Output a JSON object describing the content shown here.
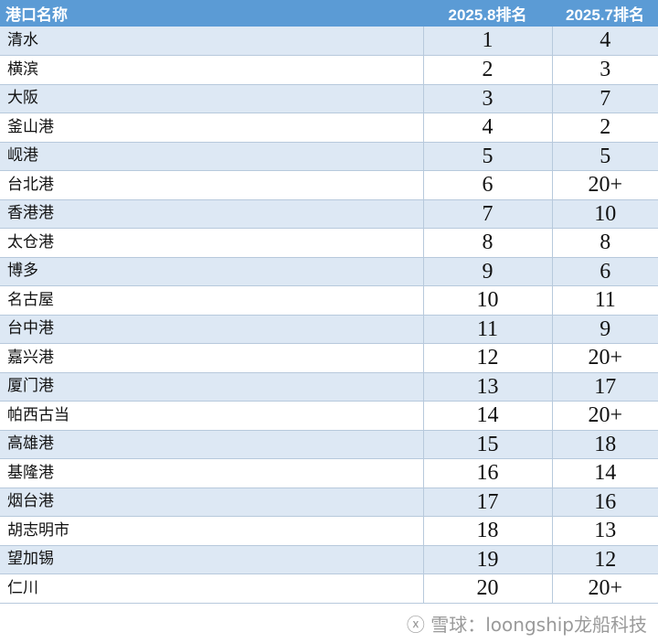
{
  "headers": [
    "港口名称",
    "2025.8排名",
    "2025.7排名"
  ],
  "rows": [
    [
      "清水",
      "1",
      "4"
    ],
    [
      "横滨",
      "2",
      "3"
    ],
    [
      "大阪",
      "3",
      "7"
    ],
    [
      "釜山港",
      "4",
      "2"
    ],
    [
      "岘港",
      "5",
      "5"
    ],
    [
      "台北港",
      "6",
      "20+"
    ],
    [
      "香港港",
      "7",
      "10"
    ],
    [
      "太仓港",
      "8",
      "8"
    ],
    [
      "博多",
      "9",
      "6"
    ],
    [
      "名古屋",
      "10",
      "11"
    ],
    [
      "台中港",
      "11",
      "9"
    ],
    [
      "嘉兴港",
      "12",
      "20+"
    ],
    [
      "厦门港",
      "13",
      "17"
    ],
    [
      "帕西古当",
      "14",
      "20+"
    ],
    [
      "高雄港",
      "15",
      "18"
    ],
    [
      "基隆港",
      "16",
      "14"
    ],
    [
      "烟台港",
      "17",
      "16"
    ],
    [
      "胡志明市",
      "18",
      "13"
    ],
    [
      "望加锡",
      "19",
      "12"
    ],
    [
      "仁川",
      "20",
      "20+"
    ]
  ],
  "watermark": "ⓧ 雪球：loongship龙船科技",
  "colors": {
    "header_bg": "#5b9bd5",
    "row_alt_bg": "#dde8f4"
  }
}
